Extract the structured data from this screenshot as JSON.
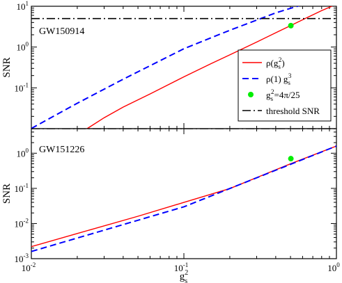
{
  "chart_data": [
    {
      "type": "line",
      "x_scale": "log",
      "y_scale": "log",
      "xlim": [
        0.01,
        1
      ],
      "ylim": [
        0.01,
        10
      ],
      "x_ticks": [
        {
          "v": 0.01,
          "m": "10",
          "e": "-2"
        },
        {
          "v": 0.1,
          "m": "10",
          "e": "-1"
        },
        {
          "v": 1,
          "m": "10",
          "e": "0"
        }
      ],
      "y_ticks": [
        {
          "v": 0.1,
          "m": "10",
          "e": "-1"
        },
        {
          "v": 1,
          "m": "10",
          "e": "0"
        },
        {
          "v": 10,
          "m": "10",
          "e": "1"
        }
      ],
      "ylabel": "SNR",
      "xlabel": "",
      "annotation": "GW150914",
      "series": [
        {
          "name": "ρ(gs²)",
          "style": "solid",
          "color": "#ff0000",
          "x": [
            0.0232,
            0.03,
            0.04,
            0.06,
            0.08,
            0.1,
            0.15,
            0.2,
            0.3,
            0.4,
            0.5,
            0.65,
            0.8,
            1.0
          ],
          "y": [
            0.01,
            0.0185,
            0.0337,
            0.0708,
            0.1221,
            0.1862,
            0.3882,
            0.6441,
            1.327,
            2.238,
            3.35,
            5.38,
            7.84,
            11.17
          ]
        },
        {
          "name": "ρ(1) gs³",
          "style": "dashed",
          "color": "#0000ff",
          "x": [
            0.01,
            0.02,
            0.04,
            0.1,
            0.2,
            0.4,
            0.7,
            1.0
          ],
          "y": [
            0.0101,
            0.0419,
            0.1628,
            0.91,
            2.58,
            6.88,
            13.08,
            11.17
          ]
        },
        {
          "name": "gs²=4π/25",
          "style": "marker",
          "color": "#00ee00",
          "x": [
            0.5027
          ],
          "y": [
            3.35
          ]
        },
        {
          "name": "threshold SNR",
          "style": "dashdot",
          "color": "#000000",
          "x": [
            0.01,
            1.0
          ],
          "y": [
            5,
            5
          ]
        }
      ],
      "legend": {
        "placement": "right",
        "items": [
          {
            "main": "ρ(g",
            "sub": "s",
            "sup": "2",
            "tail": ")"
          },
          {
            "main": "ρ(1) g",
            "sub": "s",
            "sup": "3",
            "tail": ""
          },
          {
            "main": "g",
            "sub": "s",
            "sup": "2",
            "tail": "=4π/25"
          },
          {
            "main": "threshold SNR",
            "sub": "",
            "sup": "",
            "tail": ""
          }
        ]
      }
    },
    {
      "type": "line",
      "x_scale": "log",
      "y_scale": "log",
      "xlim": [
        0.01,
        1
      ],
      "ylim": [
        0.001,
        5
      ],
      "x_ticks": [
        {
          "v": 0.01,
          "m": "10",
          "e": "-2"
        },
        {
          "v": 0.1,
          "m": "10",
          "e": "-1"
        },
        {
          "v": 1,
          "m": "10",
          "e": "0"
        }
      ],
      "y_ticks": [
        {
          "v": 0.001,
          "m": "10",
          "e": "-3"
        },
        {
          "v": 0.01,
          "m": "10",
          "e": "-2"
        },
        {
          "v": 0.1,
          "m": "10",
          "e": "-1"
        },
        {
          "v": 1,
          "m": "10",
          "e": "0"
        }
      ],
      "ylabel": "SNR",
      "xlabel": {
        "main": "g",
        "sub": "s",
        "sup": "2"
      },
      "annotation": "GW151226",
      "series": [
        {
          "name": "ρ(gs²)",
          "style": "solid",
          "color": "#ff0000",
          "x": [
            0.01,
            0.02,
            0.05,
            0.1,
            0.2,
            0.5,
            1.0
          ],
          "y": [
            0.0022,
            0.0052,
            0.0161,
            0.0399,
            0.0987,
            0.5,
            1.6
          ]
        },
        {
          "name": "ρ(1) gs³",
          "style": "dashed",
          "color": "#0000ff",
          "x": [
            0.01,
            0.1,
            1.0
          ],
          "y": [
            0.0016,
            0.0299,
            1.6
          ]
        },
        {
          "name": "gs²=4π/25",
          "style": "marker",
          "color": "#00ee00",
          "x": [
            0.5027
          ],
          "y": [
            0.7
          ]
        },
        {
          "name": "threshold SNR",
          "style": "dashdot",
          "color": "#000000",
          "x": [
            0.01,
            1.0
          ],
          "y": [
            5,
            5
          ]
        }
      ]
    }
  ]
}
